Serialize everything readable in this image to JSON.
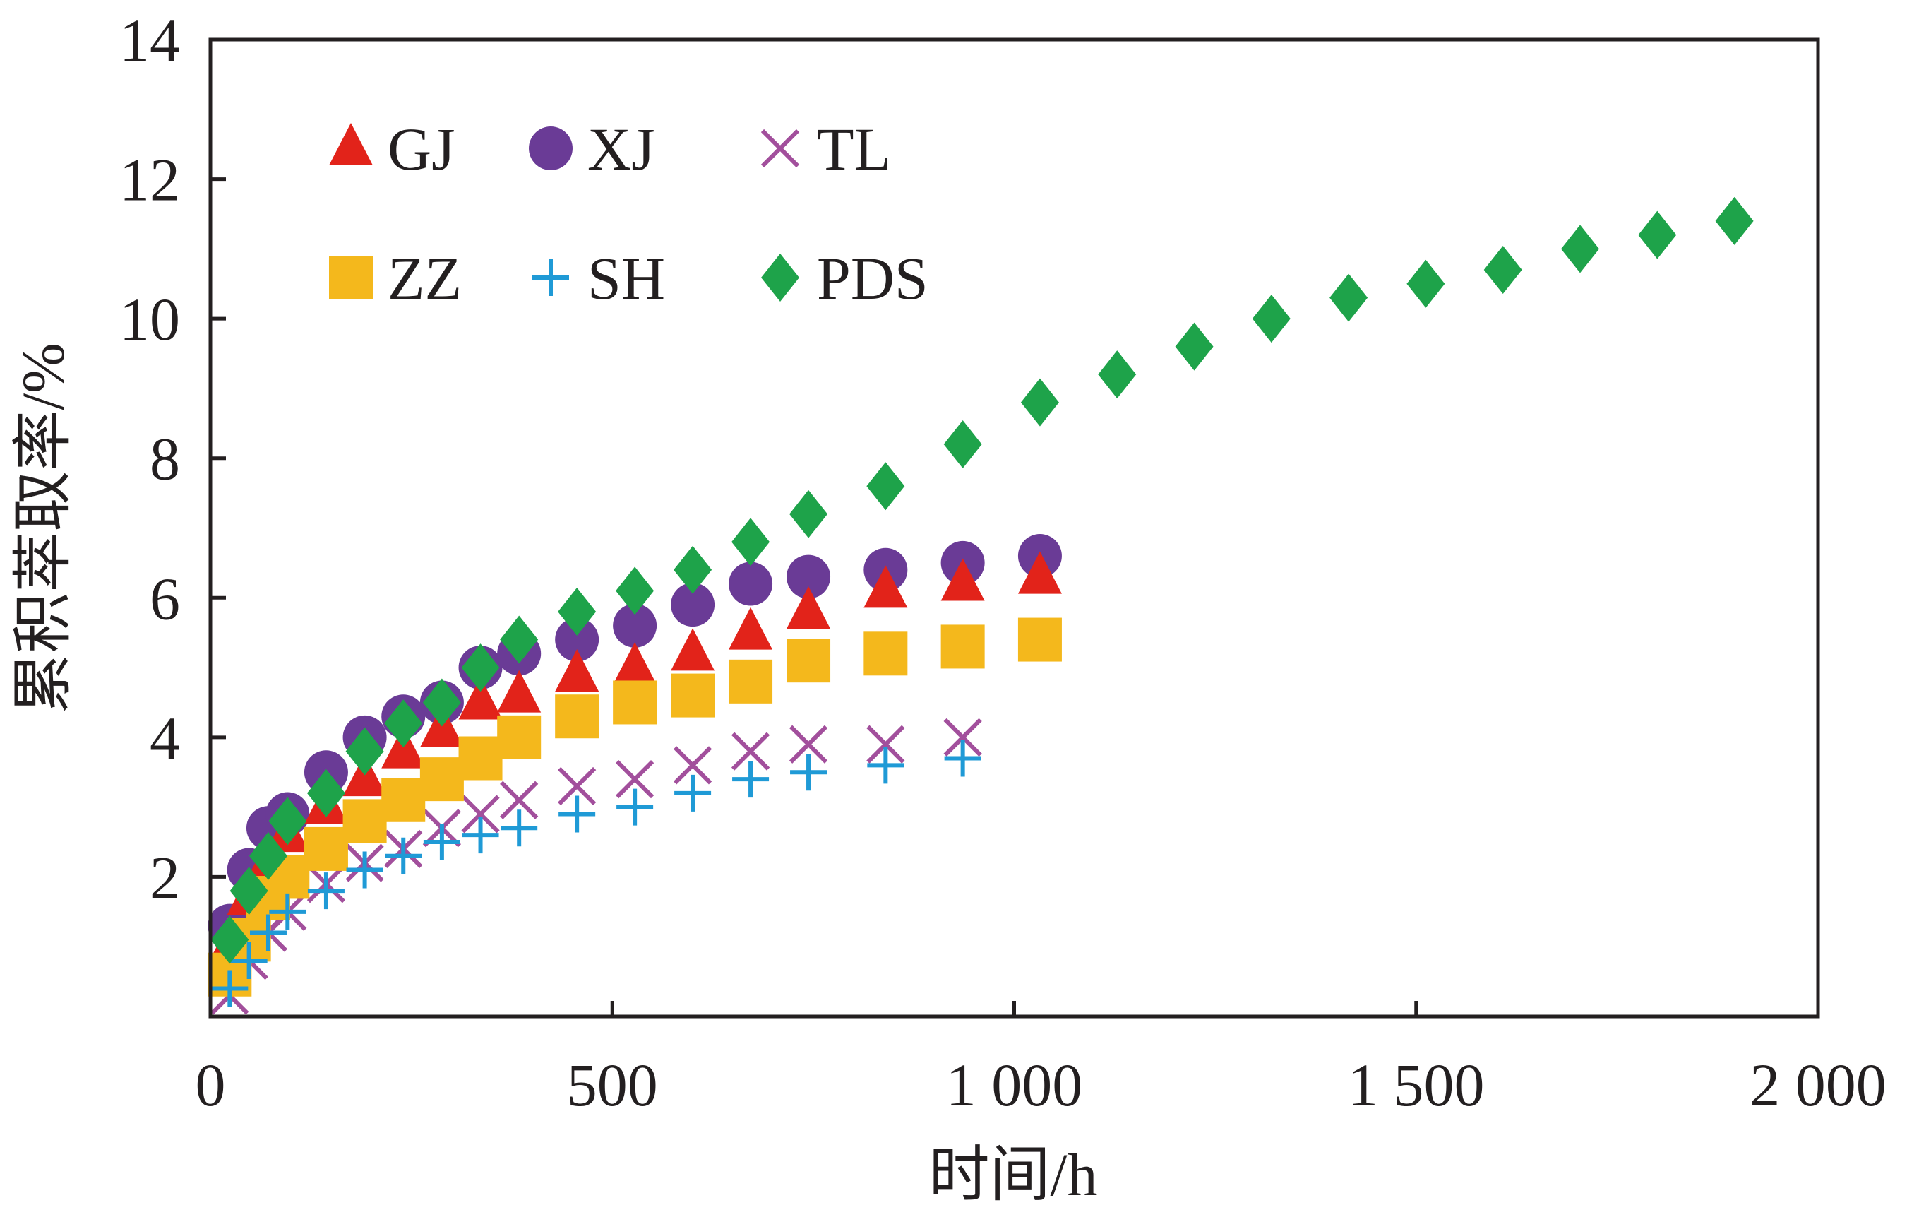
{
  "chart_data": {
    "type": "scatter",
    "xlabel": "时间/h",
    "ylabel": "累积萃取率/%",
    "xlim": [
      0,
      2000
    ],
    "ylim": [
      0,
      14
    ],
    "x_ticks": [
      {
        "value": 0,
        "label": "0"
      },
      {
        "value": 500,
        "label": "500"
      },
      {
        "value": 1000,
        "label": "1 000"
      },
      {
        "value": 1500,
        "label": "1 500"
      },
      {
        "value": 2000,
        "label": "2 000"
      }
    ],
    "y_ticks": [
      {
        "value": 2,
        "label": "2"
      },
      {
        "value": 4,
        "label": "4"
      },
      {
        "value": 6,
        "label": "6"
      },
      {
        "value": 8,
        "label": "8"
      },
      {
        "value": 10,
        "label": "10"
      },
      {
        "value": 12,
        "label": "12"
      },
      {
        "value": 14,
        "label": "14"
      }
    ],
    "legend_placement": "top-left",
    "series": [
      {
        "name": "GJ",
        "marker": "triangle",
        "color": "#e2231a",
        "x": [
          24,
          48,
          72,
          96,
          144,
          192,
          240,
          288,
          336,
          384,
          456,
          528,
          600,
          672,
          744,
          840,
          936,
          1032
        ],
        "y": [
          1.0,
          1.7,
          2.2,
          2.6,
          3.0,
          3.4,
          3.8,
          4.1,
          4.5,
          4.6,
          4.9,
          5.0,
          5.2,
          5.5,
          5.8,
          6.1,
          6.2,
          6.3
        ]
      },
      {
        "name": "XJ",
        "marker": "circle",
        "color": "#6a3b96",
        "x": [
          24,
          48,
          72,
          96,
          144,
          192,
          240,
          288,
          336,
          384,
          456,
          528,
          600,
          672,
          744,
          840,
          936,
          1032
        ],
        "y": [
          1.3,
          2.1,
          2.7,
          2.9,
          3.5,
          4.0,
          4.3,
          4.5,
          5.0,
          5.2,
          5.4,
          5.6,
          5.9,
          6.2,
          6.3,
          6.4,
          6.5,
          6.6
        ]
      },
      {
        "name": "TL",
        "marker": "x",
        "color": "#a24f9c",
        "x": [
          24,
          48,
          72,
          96,
          144,
          192,
          240,
          288,
          336,
          384,
          456,
          528,
          600,
          672,
          744,
          840,
          936
        ],
        "y": [
          0.3,
          0.8,
          1.2,
          1.5,
          1.9,
          2.2,
          2.4,
          2.7,
          2.9,
          3.1,
          3.3,
          3.4,
          3.6,
          3.8,
          3.9,
          3.9,
          4.0
        ]
      },
      {
        "name": "ZZ",
        "marker": "square",
        "color": "#f4b81c",
        "x": [
          24,
          48,
          72,
          96,
          144,
          192,
          240,
          288,
          336,
          384,
          456,
          528,
          600,
          672,
          744,
          840,
          936,
          1032
        ],
        "y": [
          0.6,
          1.1,
          1.7,
          2.0,
          2.4,
          2.8,
          3.1,
          3.4,
          3.7,
          4.0,
          4.3,
          4.5,
          4.6,
          4.8,
          5.1,
          5.2,
          5.3,
          5.4
        ]
      },
      {
        "name": "SH",
        "marker": "plus",
        "color": "#1f9ad6",
        "x": [
          24,
          48,
          72,
          96,
          144,
          192,
          240,
          288,
          336,
          384,
          456,
          528,
          600,
          672,
          744,
          840,
          936
        ],
        "y": [
          0.4,
          0.8,
          1.2,
          1.5,
          1.8,
          2.1,
          2.3,
          2.5,
          2.6,
          2.7,
          2.9,
          3.0,
          3.2,
          3.4,
          3.5,
          3.6,
          3.7
        ]
      },
      {
        "name": "PDS",
        "marker": "diamond",
        "color": "#1ea34a",
        "x": [
          24,
          48,
          72,
          96,
          144,
          192,
          240,
          288,
          336,
          384,
          456,
          528,
          600,
          672,
          744,
          840,
          936,
          1032,
          1128,
          1224,
          1320,
          1416,
          1512,
          1608,
          1704,
          1800,
          1896
        ],
        "y": [
          1.1,
          1.8,
          2.3,
          2.8,
          3.2,
          3.8,
          4.2,
          4.5,
          5.0,
          5.4,
          5.8,
          6.1,
          6.4,
          6.8,
          7.2,
          7.6,
          8.2,
          8.8,
          9.2,
          9.6,
          10.0,
          10.3,
          10.5,
          10.7,
          11.0,
          11.2,
          11.4
        ]
      }
    ]
  }
}
